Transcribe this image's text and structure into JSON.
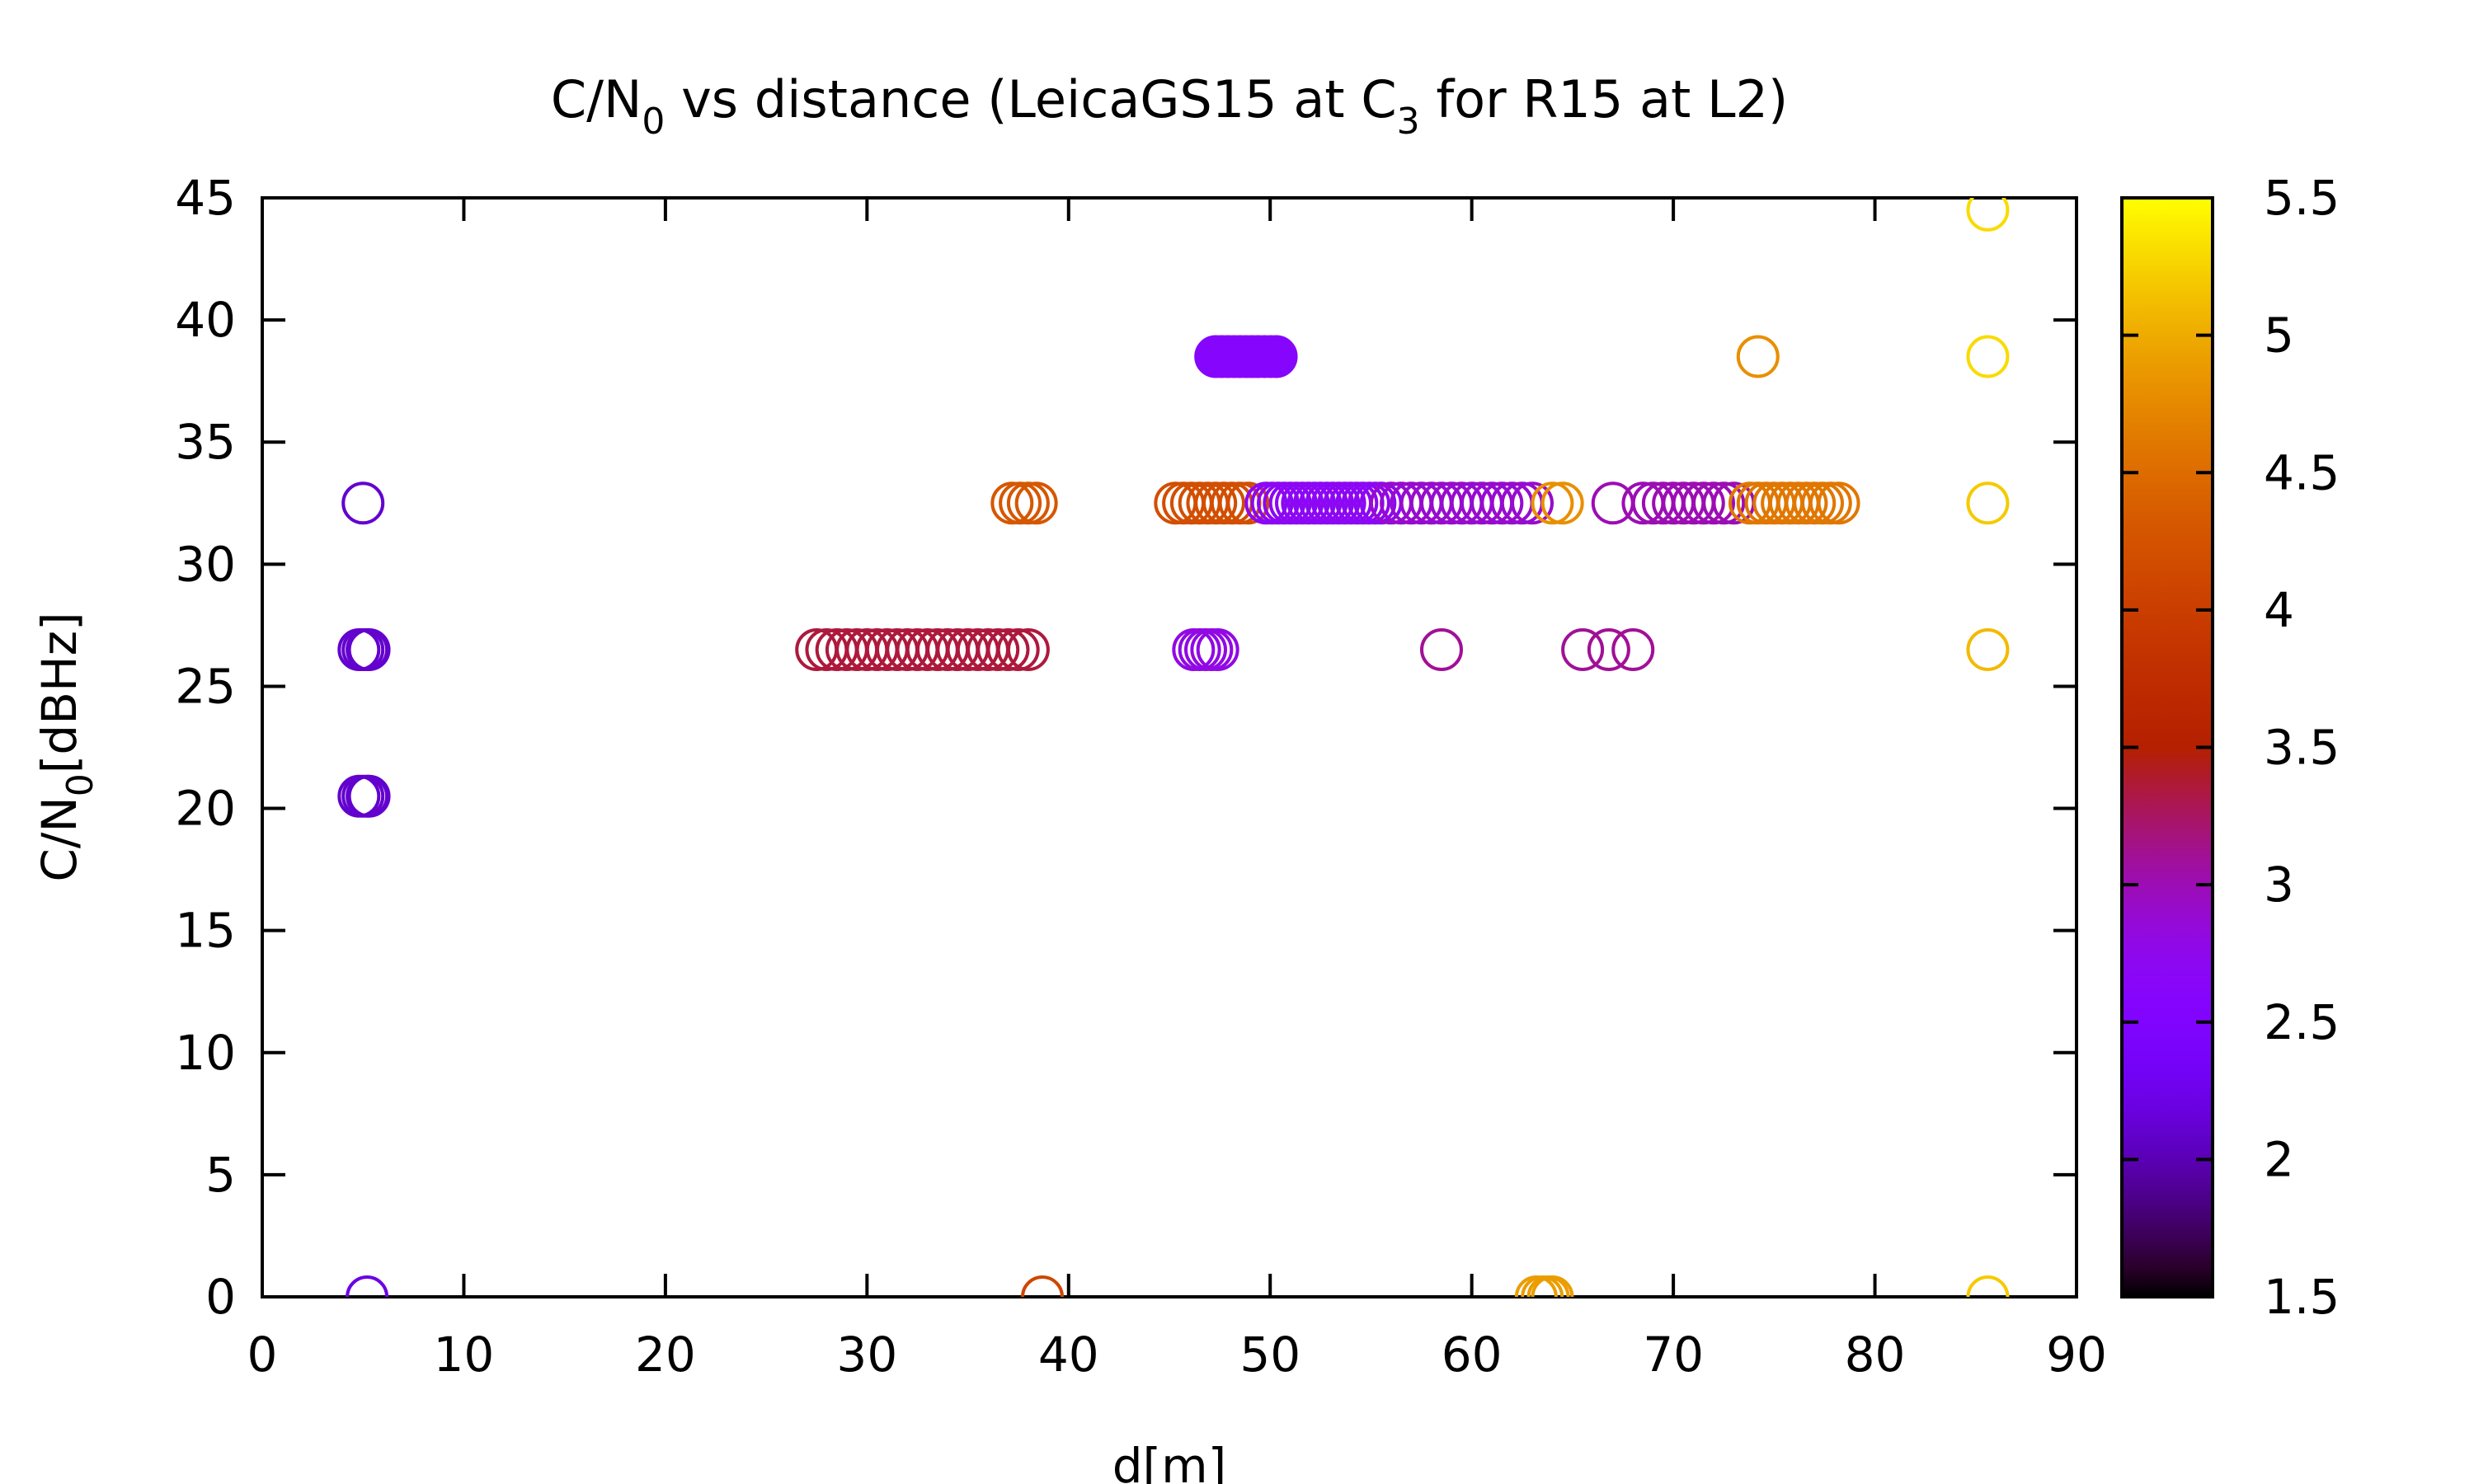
{
  "chart_data": {
    "type": "scatter",
    "title": {
      "base": "C/N",
      "sub": "0",
      "mid": " vs distance (LeicaGS15 at C",
      "sub2": "3",
      "end": " for R15 at L2)"
    },
    "xlabel": "d[m]",
    "ylabel": {
      "base": "C/N",
      "sub": "0",
      "end": "[dBHz]"
    },
    "xlim": [
      0,
      90
    ],
    "ylim": [
      0,
      45
    ],
    "xticks": [
      "0",
      "10",
      "20",
      "30",
      "40",
      "50",
      "60",
      "70",
      "80",
      "90"
    ],
    "yticks": [
      "0",
      "5",
      "10",
      "15",
      "20",
      "25",
      "30",
      "35",
      "40",
      "45"
    ],
    "colorbar": {
      "range": [
        1.5,
        5.5
      ],
      "ticks": [
        "1.5",
        "2",
        "2.5",
        "3",
        "3.5",
        "4",
        "4.5",
        "5",
        "5.5"
      ],
      "palette": "gnuplot"
    },
    "marker": "open-circle",
    "groups": [
      {
        "y": 32.5,
        "c": 2.1,
        "x": [
          5.0
        ]
      },
      {
        "y": 26.5,
        "c": 2.1,
        "x": [
          4.8,
          5.0,
          5.2,
          5.3
        ]
      },
      {
        "y": 20.5,
        "c": 2.1,
        "x": [
          4.8,
          5.0,
          5.2,
          5.3
        ]
      },
      {
        "y": 0,
        "c": 2.2,
        "x": [
          5.2
        ]
      },
      {
        "y": 26.5,
        "c": 3.35,
        "x": [
          27.5,
          28.0,
          28.5,
          29.0,
          29.5,
          30.0,
          30.5,
          31.0,
          31.5,
          32.0,
          32.5,
          33.0,
          33.5,
          34.0,
          34.5,
          35.0,
          35.5,
          36.0,
          36.5,
          37.0,
          37.5,
          38.0
        ]
      },
      {
        "y": 32.5,
        "c": 4.3,
        "x": [
          37.2,
          37.6,
          38.0,
          38.4
        ]
      },
      {
        "y": 0,
        "c": 4.1,
        "x": [
          38.7
        ]
      },
      {
        "y": 32.5,
        "c": 4.2,
        "x": [
          45.3,
          45.7,
          46.1,
          46.5,
          46.9,
          47.3,
          47.7,
          48.1,
          48.5,
          48.9
        ]
      },
      {
        "y": 26.5,
        "c": 2.8,
        "x": [
          46.2,
          46.5,
          46.8,
          47.1,
          47.4
        ]
      },
      {
        "y": 38.5,
        "c": 2.6,
        "x": [
          47.3,
          47.6,
          47.9,
          48.2,
          48.5,
          48.8,
          49.1,
          49.4,
          49.7,
          50.0,
          50.3
        ],
        "fill": true
      },
      {
        "y": 32.5,
        "c": 2.7,
        "x": [
          49.8,
          50.1,
          50.4,
          50.7,
          51.0,
          51.3,
          51.6,
          51.9,
          52.2,
          52.5,
          52.8,
          53.1,
          53.4,
          53.7,
          54.0,
          54.3,
          54.6,
          54.9,
          55.2,
          55.5
        ]
      },
      {
        "y": 32.5,
        "c": 2.9,
        "x": [
          56.0,
          56.5,
          57.0,
          57.5,
          58.0,
          58.5,
          59.0,
          59.5,
          60.0,
          60.5,
          61.0,
          61.5,
          62.0,
          62.5,
          63.0
        ]
      },
      {
        "y": 26.5,
        "c": 3.1,
        "x": [
          58.5
        ]
      },
      {
        "y": 0,
        "c": 4.9,
        "x": [
          63.2,
          63.5,
          63.8,
          64.0
        ]
      },
      {
        "y": 32.5,
        "c": 4.8,
        "x": [
          64.0,
          64.5
        ]
      },
      {
        "y": 26.5,
        "c": 3.1,
        "x": [
          65.5,
          66.8,
          68.0
        ]
      },
      {
        "y": 32.5,
        "c": 3.0,
        "x": [
          67.0,
          68.5,
          69.0,
          69.5,
          70.0,
          70.5,
          71.0,
          71.5,
          72.0,
          72.5,
          73.0
        ]
      },
      {
        "y": 38.5,
        "c": 4.8,
        "x": [
          74.2
        ]
      },
      {
        "y": 32.5,
        "c": 4.6,
        "x": [
          73.8,
          74.2,
          74.6,
          75.0,
          75.4,
          75.8,
          76.2,
          76.6,
          77.0,
          77.4,
          77.8,
          78.2
        ]
      },
      {
        "y": 44.5,
        "c": 5.3,
        "x": [
          85.6
        ]
      },
      {
        "y": 38.5,
        "c": 5.3,
        "x": [
          85.6
        ]
      },
      {
        "y": 32.5,
        "c": 5.2,
        "x": [
          85.6
        ]
      },
      {
        "y": 26.5,
        "c": 5.1,
        "x": [
          85.6
        ]
      },
      {
        "y": 0,
        "c": 5.2,
        "x": [
          85.6
        ]
      }
    ]
  }
}
